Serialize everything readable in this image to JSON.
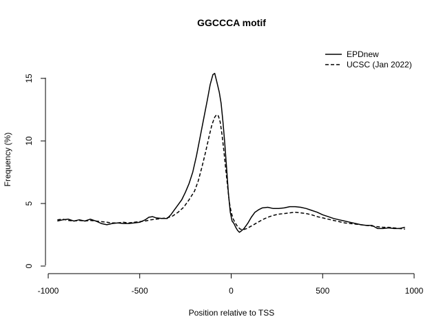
{
  "chart_data": {
    "type": "line",
    "title": "GGCCCA motif",
    "xlabel": "Position relative to TSS",
    "ylabel": "Frequency (%)",
    "xlim": [
      -1000,
      1000
    ],
    "ylim": [
      0,
      15
    ],
    "x_ticks": [
      -1000,
      -500,
      0,
      500,
      1000
    ],
    "y_ticks": [
      0,
      5,
      10,
      15
    ],
    "x_tick_labels": [
      "-1000",
      "-500",
      "0",
      "500",
      "1000"
    ],
    "y_tick_labels": [
      "0",
      "5",
      "10",
      "15"
    ],
    "grid": false,
    "legend_position": "top-right",
    "series": [
      {
        "name": "EPDnew",
        "dash": "solid",
        "color": "#000000",
        "points": [
          [
            -950,
            3.6
          ],
          [
            -920,
            3.7
          ],
          [
            -890,
            3.75
          ],
          [
            -860,
            3.6
          ],
          [
            -830,
            3.7
          ],
          [
            -800,
            3.6
          ],
          [
            -770,
            3.75
          ],
          [
            -740,
            3.6
          ],
          [
            -710,
            3.4
          ],
          [
            -680,
            3.3
          ],
          [
            -650,
            3.4
          ],
          [
            -620,
            3.45
          ],
          [
            -590,
            3.4
          ],
          [
            -560,
            3.4
          ],
          [
            -530,
            3.45
          ],
          [
            -500,
            3.5
          ],
          [
            -470,
            3.7
          ],
          [
            -450,
            3.9
          ],
          [
            -430,
            3.95
          ],
          [
            -410,
            3.85
          ],
          [
            -380,
            3.8
          ],
          [
            -350,
            3.8
          ],
          [
            -330,
            4.1
          ],
          [
            -310,
            4.5
          ],
          [
            -290,
            4.9
          ],
          [
            -270,
            5.3
          ],
          [
            -250,
            5.9
          ],
          [
            -230,
            6.6
          ],
          [
            -210,
            7.5
          ],
          [
            -190,
            8.8
          ],
          [
            -170,
            10.3
          ],
          [
            -150,
            11.8
          ],
          [
            -130,
            13.3
          ],
          [
            -115,
            14.5
          ],
          [
            -100,
            15.3
          ],
          [
            -90,
            15.4
          ],
          [
            -80,
            14.8
          ],
          [
            -65,
            13.9
          ],
          [
            -55,
            13.0
          ],
          [
            -45,
            11.5
          ],
          [
            -35,
            9.8
          ],
          [
            -25,
            7.8
          ],
          [
            -15,
            5.8
          ],
          [
            -5,
            4.3
          ],
          [
            5,
            3.6
          ],
          [
            15,
            3.4
          ],
          [
            25,
            3.1
          ],
          [
            35,
            2.85
          ],
          [
            45,
            2.7
          ],
          [
            55,
            2.8
          ],
          [
            70,
            3.0
          ],
          [
            90,
            3.4
          ],
          [
            110,
            3.9
          ],
          [
            130,
            4.3
          ],
          [
            150,
            4.5
          ],
          [
            170,
            4.65
          ],
          [
            200,
            4.7
          ],
          [
            230,
            4.6
          ],
          [
            260,
            4.6
          ],
          [
            290,
            4.65
          ],
          [
            320,
            4.75
          ],
          [
            350,
            4.75
          ],
          [
            380,
            4.7
          ],
          [
            410,
            4.6
          ],
          [
            440,
            4.45
          ],
          [
            470,
            4.3
          ],
          [
            500,
            4.1
          ],
          [
            530,
            3.95
          ],
          [
            560,
            3.8
          ],
          [
            590,
            3.7
          ],
          [
            620,
            3.6
          ],
          [
            650,
            3.5
          ],
          [
            680,
            3.4
          ],
          [
            710,
            3.3
          ],
          [
            740,
            3.25
          ],
          [
            770,
            3.25
          ],
          [
            800,
            3.0
          ],
          [
            830,
            3.0
          ],
          [
            860,
            3.05
          ],
          [
            890,
            3.0
          ],
          [
            920,
            3.0
          ],
          [
            950,
            3.1
          ]
        ]
      },
      {
        "name": "UCSC (Jan 2022)",
        "dash": "dashed",
        "color": "#000000",
        "points": [
          [
            -950,
            3.7
          ],
          [
            -920,
            3.75
          ],
          [
            -890,
            3.65
          ],
          [
            -860,
            3.6
          ],
          [
            -830,
            3.65
          ],
          [
            -800,
            3.6
          ],
          [
            -770,
            3.65
          ],
          [
            -740,
            3.6
          ],
          [
            -710,
            3.55
          ],
          [
            -680,
            3.5
          ],
          [
            -650,
            3.45
          ],
          [
            -620,
            3.45
          ],
          [
            -590,
            3.5
          ],
          [
            -560,
            3.45
          ],
          [
            -530,
            3.5
          ],
          [
            -500,
            3.55
          ],
          [
            -470,
            3.6
          ],
          [
            -440,
            3.7
          ],
          [
            -410,
            3.75
          ],
          [
            -380,
            3.8
          ],
          [
            -350,
            3.85
          ],
          [
            -320,
            4.0
          ],
          [
            -290,
            4.3
          ],
          [
            -260,
            4.7
          ],
          [
            -230,
            5.3
          ],
          [
            -200,
            6.0
          ],
          [
            -180,
            6.8
          ],
          [
            -160,
            7.9
          ],
          [
            -140,
            9.1
          ],
          [
            -120,
            10.4
          ],
          [
            -105,
            11.3
          ],
          [
            -90,
            11.9
          ],
          [
            -80,
            12.1
          ],
          [
            -70,
            12.0
          ],
          [
            -60,
            11.5
          ],
          [
            -50,
            10.5
          ],
          [
            -40,
            9.2
          ],
          [
            -30,
            7.8
          ],
          [
            -20,
            6.4
          ],
          [
            -10,
            5.1
          ],
          [
            0,
            4.3
          ],
          [
            10,
            3.8
          ],
          [
            20,
            3.5
          ],
          [
            35,
            3.15
          ],
          [
            50,
            2.95
          ],
          [
            65,
            2.9
          ],
          [
            85,
            3.0
          ],
          [
            110,
            3.2
          ],
          [
            140,
            3.45
          ],
          [
            170,
            3.7
          ],
          [
            200,
            3.9
          ],
          [
            230,
            4.05
          ],
          [
            260,
            4.15
          ],
          [
            290,
            4.2
          ],
          [
            320,
            4.25
          ],
          [
            350,
            4.3
          ],
          [
            380,
            4.25
          ],
          [
            410,
            4.2
          ],
          [
            440,
            4.1
          ],
          [
            470,
            3.95
          ],
          [
            500,
            3.85
          ],
          [
            530,
            3.75
          ],
          [
            560,
            3.65
          ],
          [
            590,
            3.55
          ],
          [
            620,
            3.45
          ],
          [
            650,
            3.4
          ],
          [
            680,
            3.35
          ],
          [
            710,
            3.3
          ],
          [
            740,
            3.25
          ],
          [
            770,
            3.2
          ],
          [
            800,
            3.15
          ],
          [
            830,
            3.1
          ],
          [
            860,
            3.1
          ],
          [
            890,
            3.05
          ],
          [
            920,
            3.0
          ],
          [
            950,
            2.95
          ]
        ]
      }
    ]
  }
}
